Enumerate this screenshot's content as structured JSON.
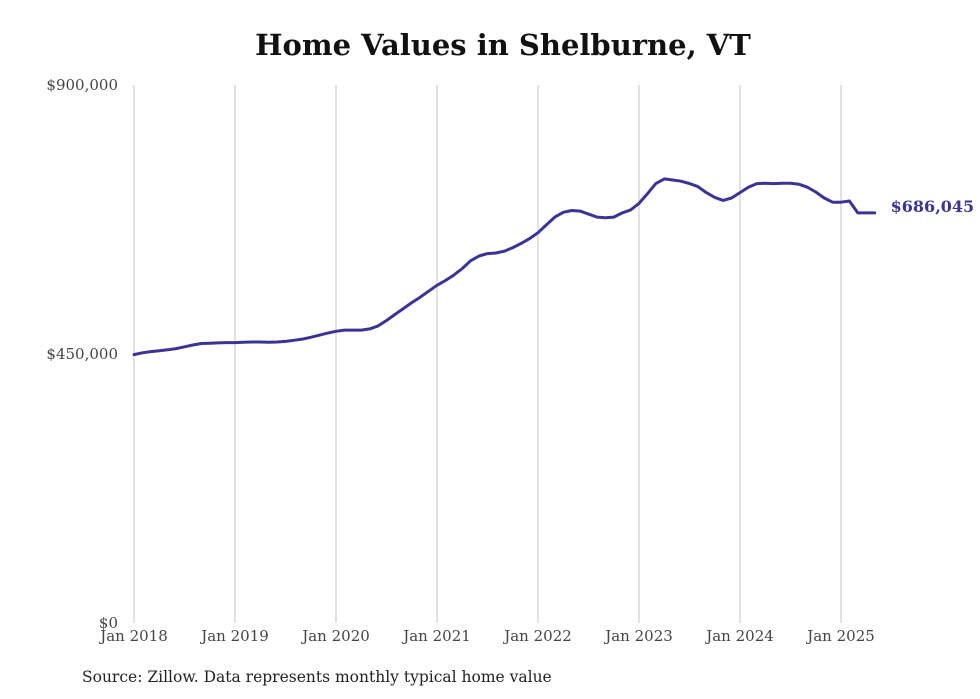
{
  "chart_data": {
    "type": "line",
    "title": "Home Values in Shelburne, VT",
    "xlabel": "",
    "ylabel": "",
    "source": "Source: Zillow. Data represents monthly typical home value",
    "line_color": "#3a3496",
    "grid": "vertical",
    "ylim": [
      0,
      900000
    ],
    "y_ticks": [
      {
        "value": 0,
        "label": "$0"
      },
      {
        "value": 450000,
        "label": "$450,000"
      },
      {
        "value": 900000,
        "label": "$900,000"
      }
    ],
    "x_ticks": [
      {
        "value": "2018-01",
        "label": "Jan 2018"
      },
      {
        "value": "2019-01",
        "label": "Jan 2019"
      },
      {
        "value": "2020-01",
        "label": "Jan 2020"
      },
      {
        "value": "2021-01",
        "label": "Jan 2021"
      },
      {
        "value": "2022-01",
        "label": "Jan 2022"
      },
      {
        "value": "2023-01",
        "label": "Jan 2023"
      },
      {
        "value": "2024-01",
        "label": "Jan 2024"
      },
      {
        "value": "2025-01",
        "label": "Jan 2025"
      }
    ],
    "end_label": "$686,045",
    "series": [
      {
        "x": [
          "2018-01",
          "2018-02",
          "2018-03",
          "2018-04",
          "2018-05",
          "2018-06",
          "2018-07",
          "2018-08",
          "2018-09",
          "2018-10",
          "2018-11",
          "2018-12",
          "2019-01",
          "2019-02",
          "2019-03",
          "2019-04",
          "2019-05",
          "2019-06",
          "2019-07",
          "2019-08",
          "2019-09",
          "2019-10",
          "2019-11",
          "2019-12",
          "2020-01",
          "2020-02",
          "2020-03",
          "2020-04",
          "2020-05",
          "2020-06",
          "2020-07",
          "2020-08",
          "2020-09",
          "2020-10",
          "2020-11",
          "2020-12",
          "2021-01",
          "2021-02",
          "2021-03",
          "2021-04",
          "2021-05",
          "2021-06",
          "2021-07",
          "2021-08",
          "2021-09",
          "2021-10",
          "2021-11",
          "2021-12",
          "2022-01",
          "2022-02",
          "2022-03",
          "2022-04",
          "2022-05",
          "2022-06",
          "2022-07",
          "2022-08",
          "2022-09",
          "2022-10",
          "2022-11",
          "2022-12",
          "2023-01",
          "2023-02",
          "2023-03",
          "2023-04",
          "2023-05",
          "2023-06",
          "2023-07",
          "2023-08",
          "2023-09",
          "2023-10",
          "2023-11",
          "2023-12",
          "2024-01",
          "2024-02",
          "2024-03",
          "2024-04",
          "2024-05",
          "2024-06",
          "2024-07",
          "2024-08",
          "2024-09",
          "2024-10",
          "2024-11",
          "2024-12",
          "2025-01",
          "2025-02",
          "2025-03",
          "2025-04",
          "2025-05"
        ],
        "values": [
          449000,
          452000,
          454000,
          455500,
          457000,
          459000,
          462000,
          465000,
          467500,
          468000,
          468500,
          469000,
          469000,
          469500,
          470000,
          470000,
          469500,
          470000,
          471000,
          473000,
          475000,
          478000,
          481500,
          485000,
          488000,
          490000,
          490000,
          490000,
          492000,
          497000,
          506000,
          516000,
          526000,
          536000,
          545000,
          555000,
          565000,
          573000,
          582000,
          593000,
          606000,
          614000,
          618000,
          619000,
          622000,
          628000,
          635000,
          643000,
          653000,
          666000,
          679000,
          687000,
          690000,
          689000,
          684000,
          679000,
          678000,
          679000,
          686000,
          691000,
          702000,
          718000,
          735000,
          743000,
          741000,
          739000,
          735000,
          730000,
          720000,
          712000,
          707000,
          711000,
          720000,
          729000,
          735000,
          735500,
          735000,
          735500,
          735500,
          734000,
          729000,
          721000,
          711000,
          704000,
          704000,
          706000,
          686045,
          686045,
          686045
        ]
      }
    ]
  }
}
